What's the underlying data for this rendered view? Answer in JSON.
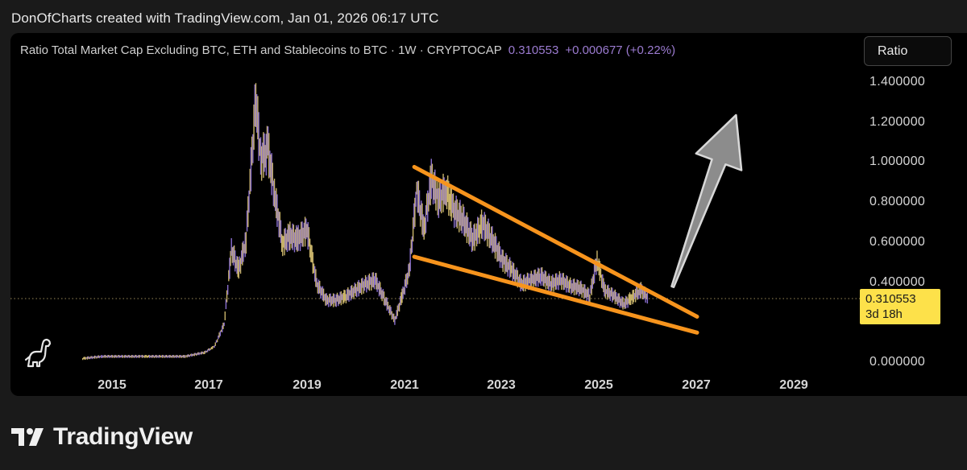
{
  "header": {
    "caption": "DonOfCharts created with TradingView.com, Jan 01, 2026 06:17 UTC"
  },
  "legend": {
    "symbol": "Ratio Total Market Cap Excluding BTC, ETH and Stablecoins to BTC · 1W · CRYPTOCAP",
    "value": "0.310553",
    "change": "+0.000677 (+0.22%)"
  },
  "toolbar": {
    "ratio_label": "Ratio"
  },
  "price_tag": {
    "value": "0.310553",
    "countdown": "3d 18h"
  },
  "brand": {
    "name": "TradingView"
  },
  "colors": {
    "background": "#000000",
    "candles_up": "#c9b46a",
    "candles_down": "#8a6fd0",
    "trendlines": "#f7941d",
    "price_tag": "#fde14a",
    "arrow": "#8c8c8c"
  },
  "chart_data": {
    "type": "line",
    "title": "Ratio Total Market Cap Excluding BTC, ETH and Stablecoins to BTC · 1W · CRYPTOCAP",
    "xlabel": "",
    "ylabel": "",
    "x_ticks": [
      "2015",
      "2017",
      "2019",
      "2021",
      "2023",
      "2025",
      "2027",
      "2029"
    ],
    "y_ticks": [
      "1.400000",
      "1.200000",
      "1.000000",
      "0.800000",
      "0.600000",
      "0.400000",
      "0.000000"
    ],
    "xlim": [
      2014.0,
      2030.0
    ],
    "ylim": [
      -0.05,
      1.45
    ],
    "grid": false,
    "series": [
      {
        "x": [
          2014.4,
          2014.8,
          2015.2,
          2015.6,
          2016.0,
          2016.5,
          2016.9,
          2017.1,
          2017.3,
          2017.45,
          2017.6,
          2017.75,
          2017.95,
          2018.05,
          2018.2,
          2018.35,
          2018.5,
          2018.65,
          2018.8,
          2019.0,
          2019.2,
          2019.4,
          2019.6,
          2019.8,
          2020.0,
          2020.2,
          2020.4,
          2020.6,
          2020.8,
          2020.95,
          2021.1,
          2021.25,
          2021.4,
          2021.55,
          2021.7,
          2021.85,
          2022.0,
          2022.2,
          2022.4,
          2022.6,
          2022.8,
          2023.0,
          2023.2,
          2023.4,
          2023.6,
          2023.8,
          2024.0,
          2024.2,
          2024.4,
          2024.6,
          2024.8,
          2024.95,
          2025.1,
          2025.3,
          2025.5,
          2025.7,
          2025.85,
          2026.0
        ],
        "values": [
          0.01,
          0.02,
          0.02,
          0.02,
          0.02,
          0.02,
          0.04,
          0.07,
          0.18,
          0.55,
          0.45,
          0.6,
          1.3,
          1.0,
          1.05,
          0.8,
          0.58,
          0.62,
          0.6,
          0.65,
          0.38,
          0.3,
          0.3,
          0.32,
          0.35,
          0.38,
          0.4,
          0.3,
          0.2,
          0.32,
          0.45,
          0.85,
          0.65,
          0.9,
          0.8,
          0.85,
          0.75,
          0.7,
          0.6,
          0.68,
          0.6,
          0.5,
          0.45,
          0.38,
          0.4,
          0.42,
          0.38,
          0.4,
          0.37,
          0.36,
          0.32,
          0.5,
          0.35,
          0.32,
          0.28,
          0.32,
          0.35,
          0.31
        ]
      }
    ],
    "trendlines": [
      {
        "name": "upper",
        "x": [
          2021.2,
          2027.0
        ],
        "y": [
          0.97,
          0.22
        ]
      },
      {
        "name": "lower",
        "x": [
          2021.2,
          2027.0
        ],
        "y": [
          0.52,
          0.14
        ]
      }
    ],
    "arrow": {
      "from": [
        2026.5,
        0.37
      ],
      "to": [
        2027.8,
        1.23
      ]
    },
    "current_value": 0.310553
  }
}
